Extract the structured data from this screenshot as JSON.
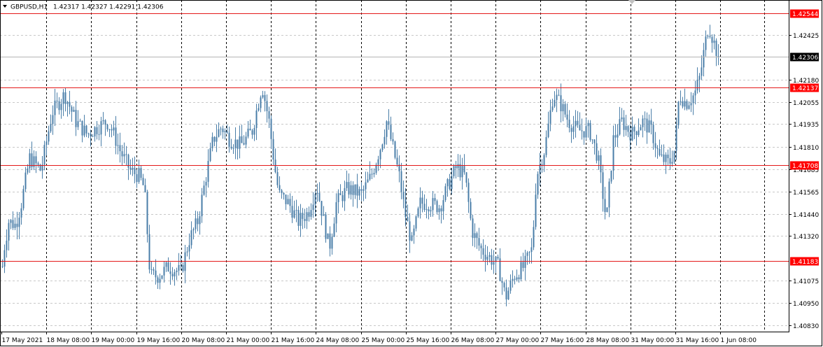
{
  "header": {
    "menu_icon": "triangle-down-icon",
    "symbol_timeframe": "GBPUSD,H1",
    "ohlc": "1.42317 1.42327 1.42291 1.42306"
  },
  "colors": {
    "background": "#ffffff",
    "grid": "#c8c8c8",
    "candle": "#4a7ea8",
    "level_line": "#e41a1a",
    "level_label_bg": "#ff0000",
    "price_label_bg": "#000000",
    "axis": "#000000",
    "text": "#000000"
  },
  "chart_data": {
    "type": "candlestick",
    "ylim": [
      1.4078,
      1.4262
    ],
    "y_ticks": [
      "1.42425",
      "1.42180",
      "1.42055",
      "1.41935",
      "1.41810",
      "1.41685",
      "1.41565",
      "1.41440",
      "1.41320",
      "1.41075",
      "1.40950",
      "1.40830"
    ],
    "x_ticks": [
      "17 May 2021",
      "18 May 08:00",
      "19 May 00:00",
      "19 May 16:00",
      "20 May 08:00",
      "21 May 00:00",
      "21 May 16:00",
      "24 May 08:00",
      "25 May 00:00",
      "25 May 16:00",
      "26 May 08:00",
      "27 May 00:00",
      "27 May 16:00",
      "28 May 08:00",
      "31 May 00:00",
      "31 May 16:00",
      "1 Jun 08:00"
    ],
    "current_price": "1.42306",
    "levels": [
      "1.42544",
      "1.42137",
      "1.41708",
      "1.41183"
    ],
    "series_waypoints": [
      [
        0,
        1.4095
      ],
      [
        4,
        1.4122
      ],
      [
        12,
        1.414
      ],
      [
        22,
        1.4138
      ],
      [
        30,
        1.415
      ],
      [
        42,
        1.4175
      ],
      [
        58,
        1.4168
      ],
      [
        74,
        1.42
      ],
      [
        92,
        1.421
      ],
      [
        108,
        1.4195
      ],
      [
        124,
        1.4188
      ],
      [
        140,
        1.4192
      ],
      [
        152,
        1.4195
      ],
      [
        160,
        1.419
      ],
      [
        172,
        1.4178
      ],
      [
        186,
        1.4168
      ],
      [
        198,
        1.4165
      ],
      [
        206,
        1.4158
      ],
      [
        214,
        1.411
      ],
      [
        226,
        1.411
      ],
      [
        240,
        1.4115
      ],
      [
        258,
        1.4112
      ],
      [
        270,
        1.413
      ],
      [
        282,
        1.414
      ],
      [
        294,
        1.4165
      ],
      [
        304,
        1.4185
      ],
      [
        316,
        1.4192
      ],
      [
        328,
        1.4185
      ],
      [
        344,
        1.4182
      ],
      [
        360,
        1.419
      ],
      [
        374,
        1.4215
      ],
      [
        384,
        1.4195
      ],
      [
        392,
        1.417
      ],
      [
        398,
        1.4155
      ],
      [
        412,
        1.415
      ],
      [
        426,
        1.414
      ],
      [
        440,
        1.4145
      ],
      [
        452,
        1.416
      ],
      [
        470,
        1.4125
      ],
      [
        480,
        1.415
      ],
      [
        496,
        1.4158
      ],
      [
        516,
        1.4155
      ],
      [
        530,
        1.4165
      ],
      [
        544,
        1.4182
      ],
      [
        552,
        1.4195
      ],
      [
        560,
        1.4182
      ],
      [
        570,
        1.4165
      ],
      [
        578,
        1.4145
      ],
      [
        588,
        1.4128
      ],
      [
        600,
        1.415
      ],
      [
        612,
        1.415
      ],
      [
        628,
        1.4148
      ],
      [
        640,
        1.416
      ],
      [
        652,
        1.417
      ],
      [
        664,
        1.4165
      ],
      [
        674,
        1.4135
      ],
      [
        686,
        1.4125
      ],
      [
        700,
        1.412
      ],
      [
        712,
        1.4115
      ],
      [
        722,
        1.4098
      ],
      [
        734,
        1.411
      ],
      [
        748,
        1.4115
      ],
      [
        760,
        1.4125
      ],
      [
        766,
        1.4165
      ],
      [
        778,
        1.418
      ],
      [
        790,
        1.421
      ],
      [
        800,
        1.4205
      ],
      [
        812,
        1.4195
      ],
      [
        826,
        1.419
      ],
      [
        842,
        1.419
      ],
      [
        854,
        1.4175
      ],
      [
        866,
        1.414
      ],
      [
        876,
        1.4185
      ],
      [
        888,
        1.4195
      ],
      [
        902,
        1.4188
      ],
      [
        918,
        1.4195
      ],
      [
        930,
        1.419
      ],
      [
        942,
        1.4175
      ],
      [
        956,
        1.4172
      ],
      [
        964,
        1.418
      ],
      [
        970,
        1.421
      ],
      [
        980,
        1.4205
      ],
      [
        992,
        1.421
      ],
      [
        1000,
        1.422
      ],
      [
        1006,
        1.4235
      ],
      [
        1012,
        1.4248
      ],
      [
        1020,
        1.4238
      ],
      [
        1026,
        1.42306
      ]
    ]
  }
}
